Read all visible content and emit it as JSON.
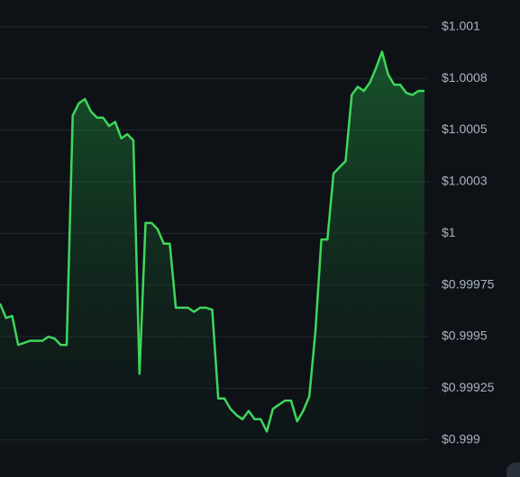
{
  "chart_data": {
    "type": "area",
    "values": [
      0.99966,
      0.99959,
      0.9996,
      0.99946,
      0.99947,
      0.99948,
      0.99948,
      0.99948,
      0.9995,
      0.99949,
      0.99946,
      0.99946,
      1.00057,
      1.00063,
      1.00065,
      1.00059,
      1.00056,
      1.00056,
      1.00052,
      1.00054,
      1.00046,
      1.00048,
      1.00045,
      0.99932,
      1.00005,
      1.00005,
      1.00002,
      0.99995,
      0.99995,
      0.99964,
      0.99964,
      0.99964,
      0.99962,
      0.99964,
      0.99964,
      0.99963,
      0.9992,
      0.9992,
      0.99915,
      0.99912,
      0.9991,
      0.99914,
      0.9991,
      0.9991,
      0.99904,
      0.99915,
      0.99917,
      0.99919,
      0.99919,
      0.99909,
      0.99914,
      0.99921,
      0.99952,
      0.99997,
      0.99997,
      1.00029,
      1.00032,
      1.00035,
      1.00067,
      1.00071,
      1.00069,
      1.00073,
      1.0008,
      1.00088,
      1.00077,
      1.00072,
      1.00072,
      1.00068,
      1.00067,
      1.00069,
      1.00069
    ],
    "color": "#3fd65c",
    "ylim": [
      0.99882,
      1.00113
    ],
    "yticks": [
      {
        "value": 1.001,
        "label": "$1.001"
      },
      {
        "value": 1.00075,
        "label": "$1.0008"
      },
      {
        "value": 1.0005,
        "label": "$1.0005"
      },
      {
        "value": 1.00025,
        "label": "$1.0003"
      },
      {
        "value": 1,
        "label": "$1"
      },
      {
        "value": 0.99975,
        "label": "$0.99975"
      },
      {
        "value": 0.9995,
        "label": "$0.9995"
      },
      {
        "value": 0.99925,
        "label": "$0.99925"
      },
      {
        "value": 0.999,
        "label": "$0.999"
      }
    ],
    "grid": true
  }
}
